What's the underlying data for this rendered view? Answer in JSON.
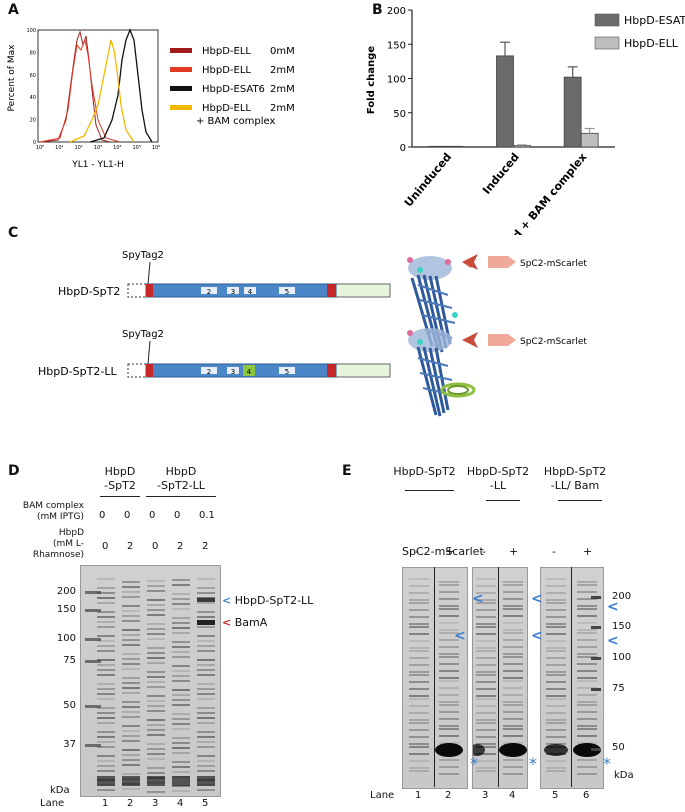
{
  "panels": {
    "a": "A",
    "b": "B",
    "c": "C",
    "d": "D",
    "e": "E"
  },
  "panel_a": {
    "ylabel": "Percent of Max",
    "xlabel": "YL1 - YL1-H",
    "y_ticks": [
      "0",
      "20",
      "40",
      "60",
      "80",
      "100"
    ],
    "x_ticks": [
      "10⁰",
      "10¹",
      "10²",
      "10³",
      "10⁴",
      "10⁵",
      "10⁶"
    ],
    "legend": [
      {
        "name": "HbpD-ELL",
        "conc": "0mM",
        "color": "#a01c1c"
      },
      {
        "name": "HbpD-ELL",
        "conc": "2mM",
        "color": "#e03a24"
      },
      {
        "name": "HbpD-ESAT6",
        "conc": "2mM",
        "color": "#111111"
      },
      {
        "name": "HbpD-ELL",
        "conc": "2mM",
        "extra": "+ BAM complex",
        "color": "#f5b800"
      }
    ]
  },
  "chart_data": {
    "type": "bar",
    "categories": [
      "Uninduced",
      "Induced",
      "Induced + BAM complex"
    ],
    "series": [
      {
        "name": "HbpD-ESAT6",
        "values": [
          1,
          133,
          102
        ],
        "errors": [
          0,
          20,
          15
        ],
        "color": "#6b6b6b"
      },
      {
        "name": "HbpD-ELL",
        "values": [
          1,
          2,
          20
        ],
        "errors": [
          0,
          1,
          7
        ],
        "color": "#bdbdbd"
      }
    ],
    "title": "",
    "xlabel": "",
    "ylabel": "Fold change",
    "ylim": [
      0,
      200
    ],
    "y_ticks": [
      "0",
      "50",
      "100",
      "150",
      "200"
    ],
    "legend": "top-right"
  },
  "panel_c": {
    "constructs": [
      {
        "name": "HbpD-SpT2",
        "tag": "SpyTag2",
        "domains": [
          "2",
          "3",
          "4",
          "5"
        ],
        "ligand": "SpC2-mScarlet"
      },
      {
        "name": "HbpD-SpT2-LL",
        "tag": "SpyTag2",
        "domains": [
          "2",
          "3",
          "4",
          "5"
        ],
        "ligand": "SpC2-mScarlet"
      }
    ]
  },
  "panel_d": {
    "headers": [
      "HbpD",
      "-SpT2",
      "HbpD",
      "-SpT2-LL"
    ],
    "bam_label_1": "BAM complex",
    "bam_label_2": "(mM IPTG)",
    "bam_values": [
      "0",
      "0",
      "0",
      "0",
      "0.1"
    ],
    "hbpd_label_1": "HbpD",
    "hbpd_label_2": "(mM L-Rhamnose)",
    "hbpd_values": [
      "0",
      "2",
      "0",
      "2",
      "2"
    ],
    "markers": [
      "200",
      "150",
      "100",
      "75",
      "50",
      "37"
    ],
    "unit": "kDa",
    "lane_label": "Lane",
    "lanes": [
      "1",
      "2",
      "3",
      "4",
      "5"
    ],
    "band_labels": [
      "HbpD-SpT2-LL",
      "BamA"
    ]
  },
  "panel_e": {
    "groups": [
      {
        "l1": "HbpD-SpT2",
        "l2": ""
      },
      {
        "l1": "HbpD-SpT2",
        "l2": "-LL"
      },
      {
        "l1": "HbpD-SpT2",
        "l2": "-LL/ Bam"
      }
    ],
    "ligand": "SpC2-mScarlet",
    "signs": [
      "-",
      "+",
      "-",
      "+",
      "-",
      "+"
    ],
    "markers": [
      "200",
      "150",
      "100",
      "75",
      "50"
    ],
    "unit": "kDa",
    "lane_label": "Lane",
    "lanes": [
      "1",
      "2",
      "3",
      "4",
      "5",
      "6"
    ]
  }
}
